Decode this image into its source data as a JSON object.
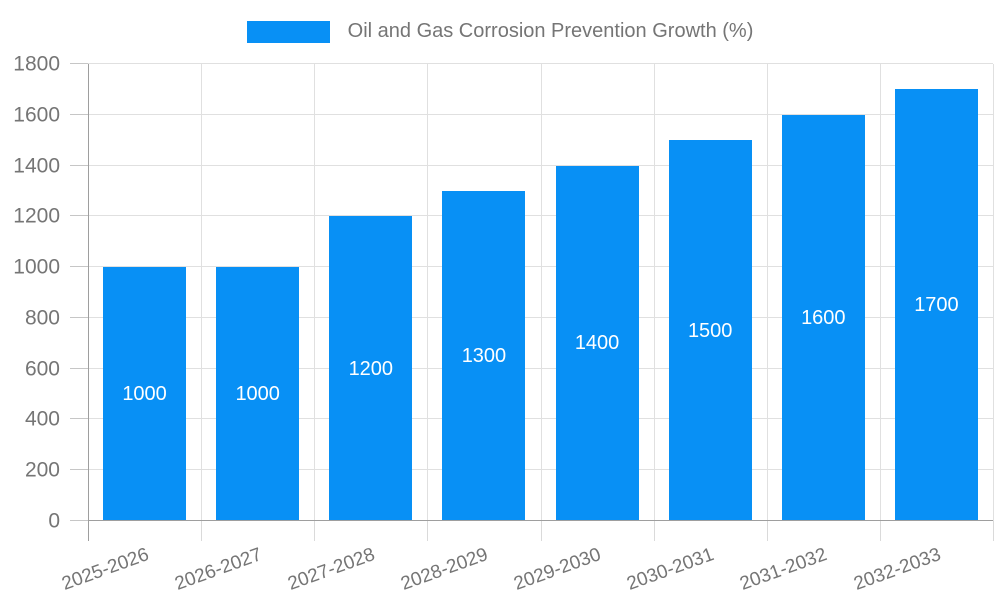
{
  "chart_data": {
    "type": "bar",
    "title": "",
    "xlabel": "",
    "ylabel": "",
    "legend_position": "top",
    "categories": [
      "2025-2026",
      "2026-2027",
      "2027-2028",
      "2028-2029",
      "2029-2030",
      "2030-2031",
      "2031-2032",
      "2032-2033"
    ],
    "series": [
      {
        "name": "Oil and Gas Corrosion Prevention Growth (%)",
        "values": [
          1000,
          1000,
          1200,
          1300,
          1400,
          1500,
          1600,
          1700
        ]
      }
    ],
    "bar_value_labels": [
      "1000",
      "1000",
      "1200",
      "1300",
      "1400",
      "1500",
      "1600",
      "1700"
    ],
    "ylim": [
      0,
      1800
    ],
    "yticks": [
      0,
      200,
      400,
      600,
      800,
      1000,
      1200,
      1400,
      1600,
      1800
    ],
    "grid": true,
    "x_tick_rotation_deg": -20,
    "colors": {
      "bar": "#0890f5",
      "bar_label": "#ffffff",
      "axis_text": "#757575",
      "axis_line": "#9e9e9e",
      "gridline": "#e0e0e0",
      "y_tick": "#c6c6c6",
      "x_tick": "#dadada",
      "background": "#ffffff"
    }
  }
}
